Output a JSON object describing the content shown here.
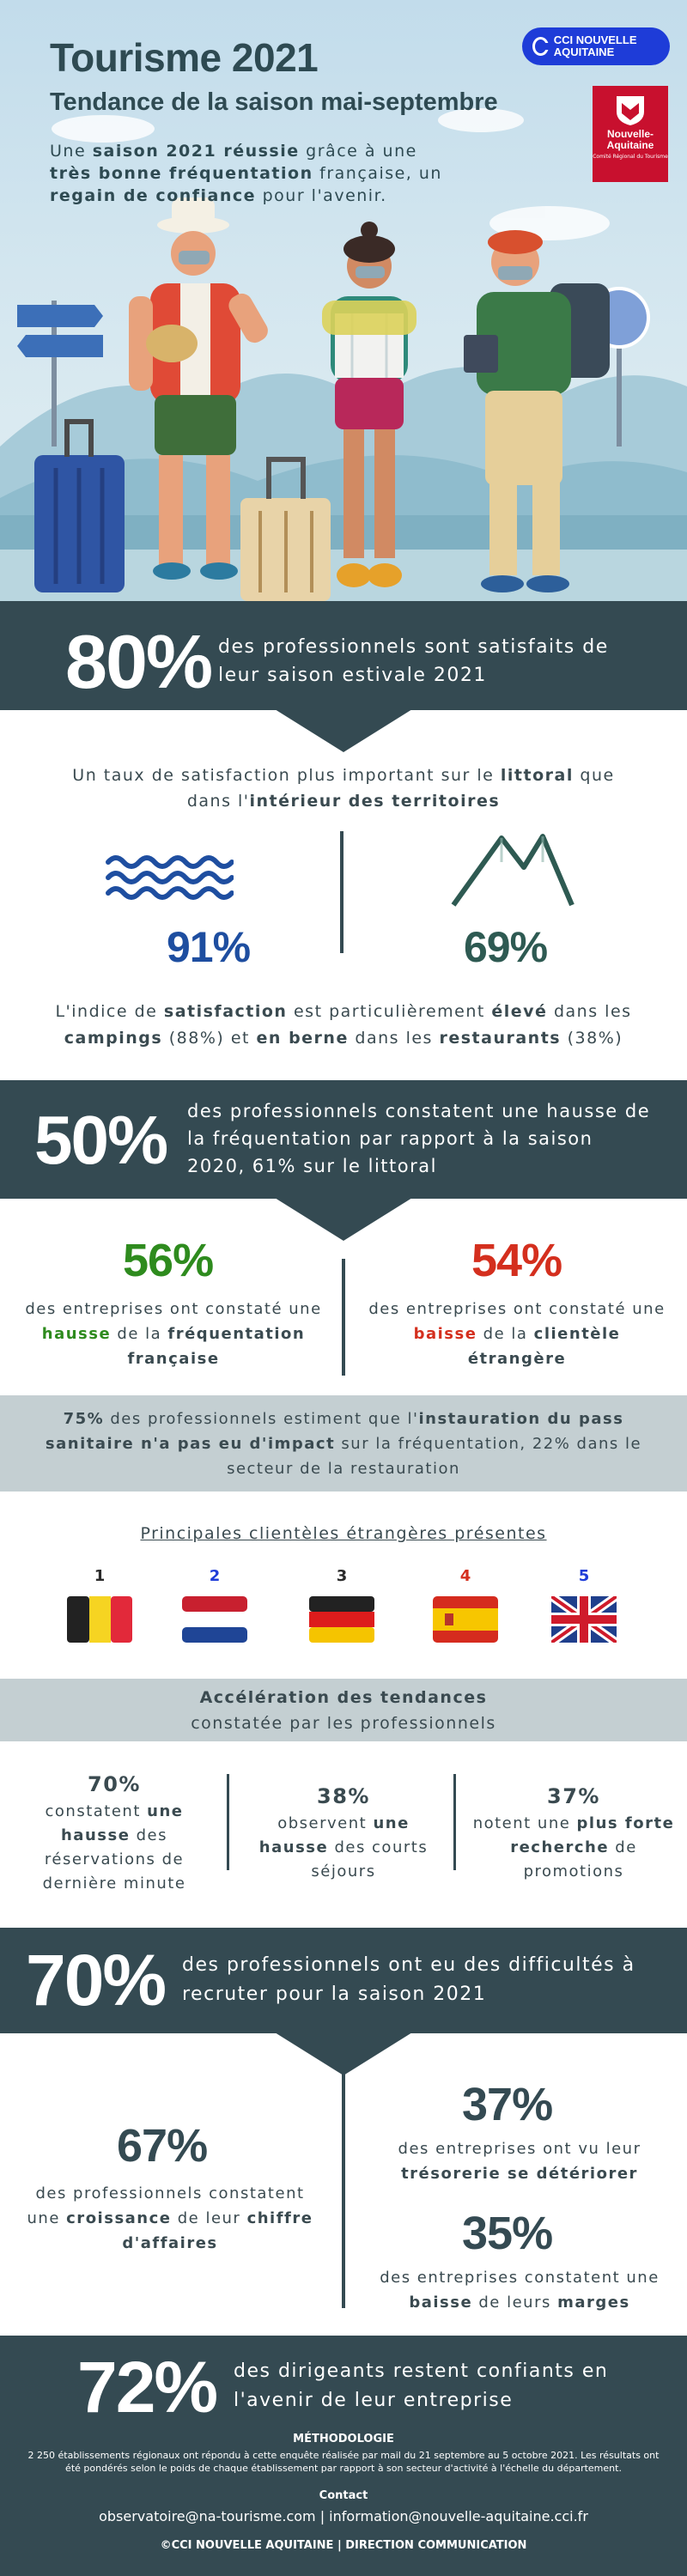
{
  "hero": {
    "title": "Tourisme 2021",
    "subtitle": "Tendance de la saison mai-septembre",
    "intro_1": "Une ",
    "intro_b1": "saison 2021 réussie",
    "intro_2": " grâce à une ",
    "intro_b2": "très bonne fréquentation",
    "intro_3": " française, un ",
    "intro_b3": "regain de confiance",
    "intro_4": " pour l'avenir.",
    "cci_logo": "CCI NOUVELLE AQUITAINE",
    "region_logo_name": "Nouvelle-Aquitaine",
    "region_logo_sub": "Comité Régional du Tourisme"
  },
  "s80": {
    "value": "80%",
    "text": "des professionnels sont satisfaits de leur saison estivale 2021"
  },
  "satisfaction": {
    "intro_1": "Un taux de satisfaction plus important sur le ",
    "intro_b1": "littoral",
    "intro_2": " que dans l'",
    "intro_b2": "intérieur des territoires",
    "left_value": "91%",
    "left_icon": "waves-icon",
    "right_value": "69%",
    "right_icon": "mountains-icon",
    "note_1": "L'indice de ",
    "note_b1": "satisfaction",
    "note_2": " est particulièrement ",
    "note_b2": "élevé",
    "note_3": " dans les ",
    "note_b3": "campings",
    "note_4": " (88%) et ",
    "note_b4": "en berne",
    "note_5": " dans les ",
    "note_b5": "restaurants",
    "note_6": " (38%)"
  },
  "s50": {
    "value": "50%",
    "text": "des professionnels constatent une hausse de la fréquentation par rapport à la saison 2020, 61% sur le littoral"
  },
  "freq": {
    "left_value": "56%",
    "left_1": "des entreprises ont constaté une ",
    "left_hl": "hausse",
    "left_2": " de la ",
    "left_b": "fréquentation française",
    "right_value": "54%",
    "right_1": "des entreprises ont constaté une ",
    "right_hl": "baisse",
    "right_2": " de la ",
    "right_b": "clientèle étrangère",
    "green": "#2e8b1e",
    "red": "#d42f1e"
  },
  "pass": {
    "b1": "75%",
    "t1": " des professionnels estiment que l'",
    "b2": "instauration du pass sanitaire n'a pas eu d'impact",
    "t2": " sur la fréquentation, 22% dans le secteur de la restauration"
  },
  "clients": {
    "title": "Principales clientèles étrangères présentes",
    "items": [
      {
        "rank": "1",
        "icon": "belgium-flag-icon"
      },
      {
        "rank": "2",
        "icon": "netherlands-flag-icon"
      },
      {
        "rank": "3",
        "icon": "germany-flag-icon"
      },
      {
        "rank": "4",
        "icon": "spain-flag-icon"
      },
      {
        "rank": "5",
        "icon": "uk-flag-icon"
      }
    ]
  },
  "trends": {
    "title": "Accélération des tendances",
    "subtitle": "constatée par les professionnels",
    "c1_value": "70%",
    "c1_1": "constatent ",
    "c1_b": "une hausse",
    "c1_2": " des réservations de dernière minute",
    "c2_value": "38%",
    "c2_1": "observent ",
    "c2_b": "une hausse",
    "c2_2": " des courts séjours",
    "c3_value": "37%",
    "c3_1": "notent une ",
    "c3_b": "plus forte recherche",
    "c3_2": " de promotions"
  },
  "s70": {
    "value": "70%",
    "text": "des professionnels ont eu des difficultés à recruter pour la saison 2021"
  },
  "finance": {
    "left_value": "67%",
    "left_1": "des professionnels constatent une ",
    "left_b1": "croissance",
    "left_2": " de leur ",
    "left_b2": "chiffre d'affaires",
    "r1_value": "37%",
    "r1_1": "des entreprises ont vu leur ",
    "r1_b": "trésorerie se détériorer",
    "r2_value": "35%",
    "r2_1": "des entreprises constatent une ",
    "r2_b": "baisse",
    "r2_2": " de leurs ",
    "r2_b2": "marges"
  },
  "footer": {
    "value": "72%",
    "text": "des dirigeants restent confiants en l'avenir de leur entreprise",
    "method_title": "MÉTHODOLOGIE",
    "method_text": "2 250 établissements régionaux ont répondu à cette enquête réalisée par mail du 21 septembre au 5 octobre 2021. Les résultats ont été pondérés selon le poids de chaque établissement par rapport à son secteur d'activité à l'échelle du département.",
    "contact_title": "Contact",
    "contact_text": "observatoire@na-tourisme.com | information@nouvelle-aquitaine.cci.fr",
    "copyright": "©CCI NOUVELLE AQUITAINE | DIRECTION COMMUNICATION"
  },
  "colors": {
    "dark": "#344a52",
    "blue": "#1e4ea0",
    "teal": "#2e5a52"
  }
}
